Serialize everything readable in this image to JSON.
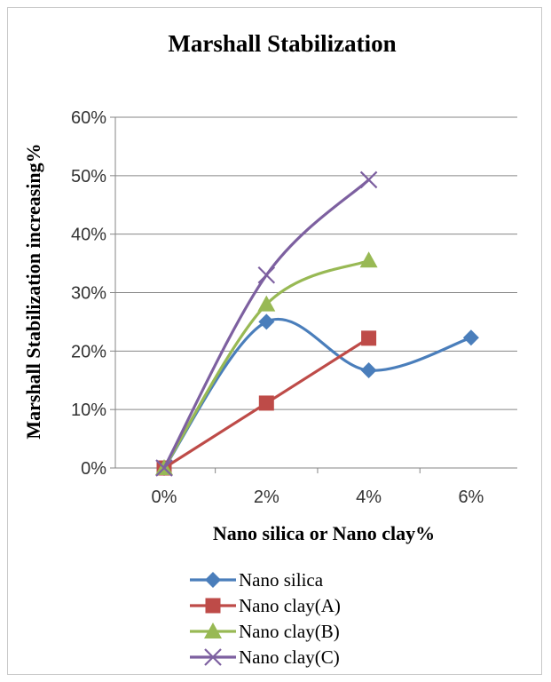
{
  "chart_data": {
    "type": "line",
    "title": "Marshall Stabilization",
    "xlabel": "Nano silica or Nano clay%",
    "ylabel": "Marshall Stabilization increasing%",
    "categories": [
      "0%",
      "2%",
      "4%",
      "6%"
    ],
    "y_ticks": [
      "0%",
      "10%",
      "20%",
      "30%",
      "40%",
      "50%",
      "60%"
    ],
    "ylim": [
      0,
      0.6
    ],
    "grid": true,
    "legend_position": "bottom",
    "series": [
      {
        "name": "Nano silica",
        "color": "#4a7ebb",
        "marker": "diamond",
        "smooth": true,
        "values": [
          0,
          0.25,
          0.167,
          0.223
        ]
      },
      {
        "name": "Nano clay(A)",
        "color": "#be4b48",
        "marker": "square",
        "smooth": false,
        "values": [
          0,
          0.111,
          0.222,
          null
        ]
      },
      {
        "name": "Nano clay(B)",
        "color": "#98b954",
        "marker": "triangle",
        "smooth": true,
        "values": [
          0,
          0.28,
          0.355,
          null
        ]
      },
      {
        "name": "Nano clay(C)",
        "color": "#7d60a0",
        "marker": "cross",
        "smooth": true,
        "values": [
          0,
          0.33,
          0.493,
          null
        ]
      }
    ]
  }
}
